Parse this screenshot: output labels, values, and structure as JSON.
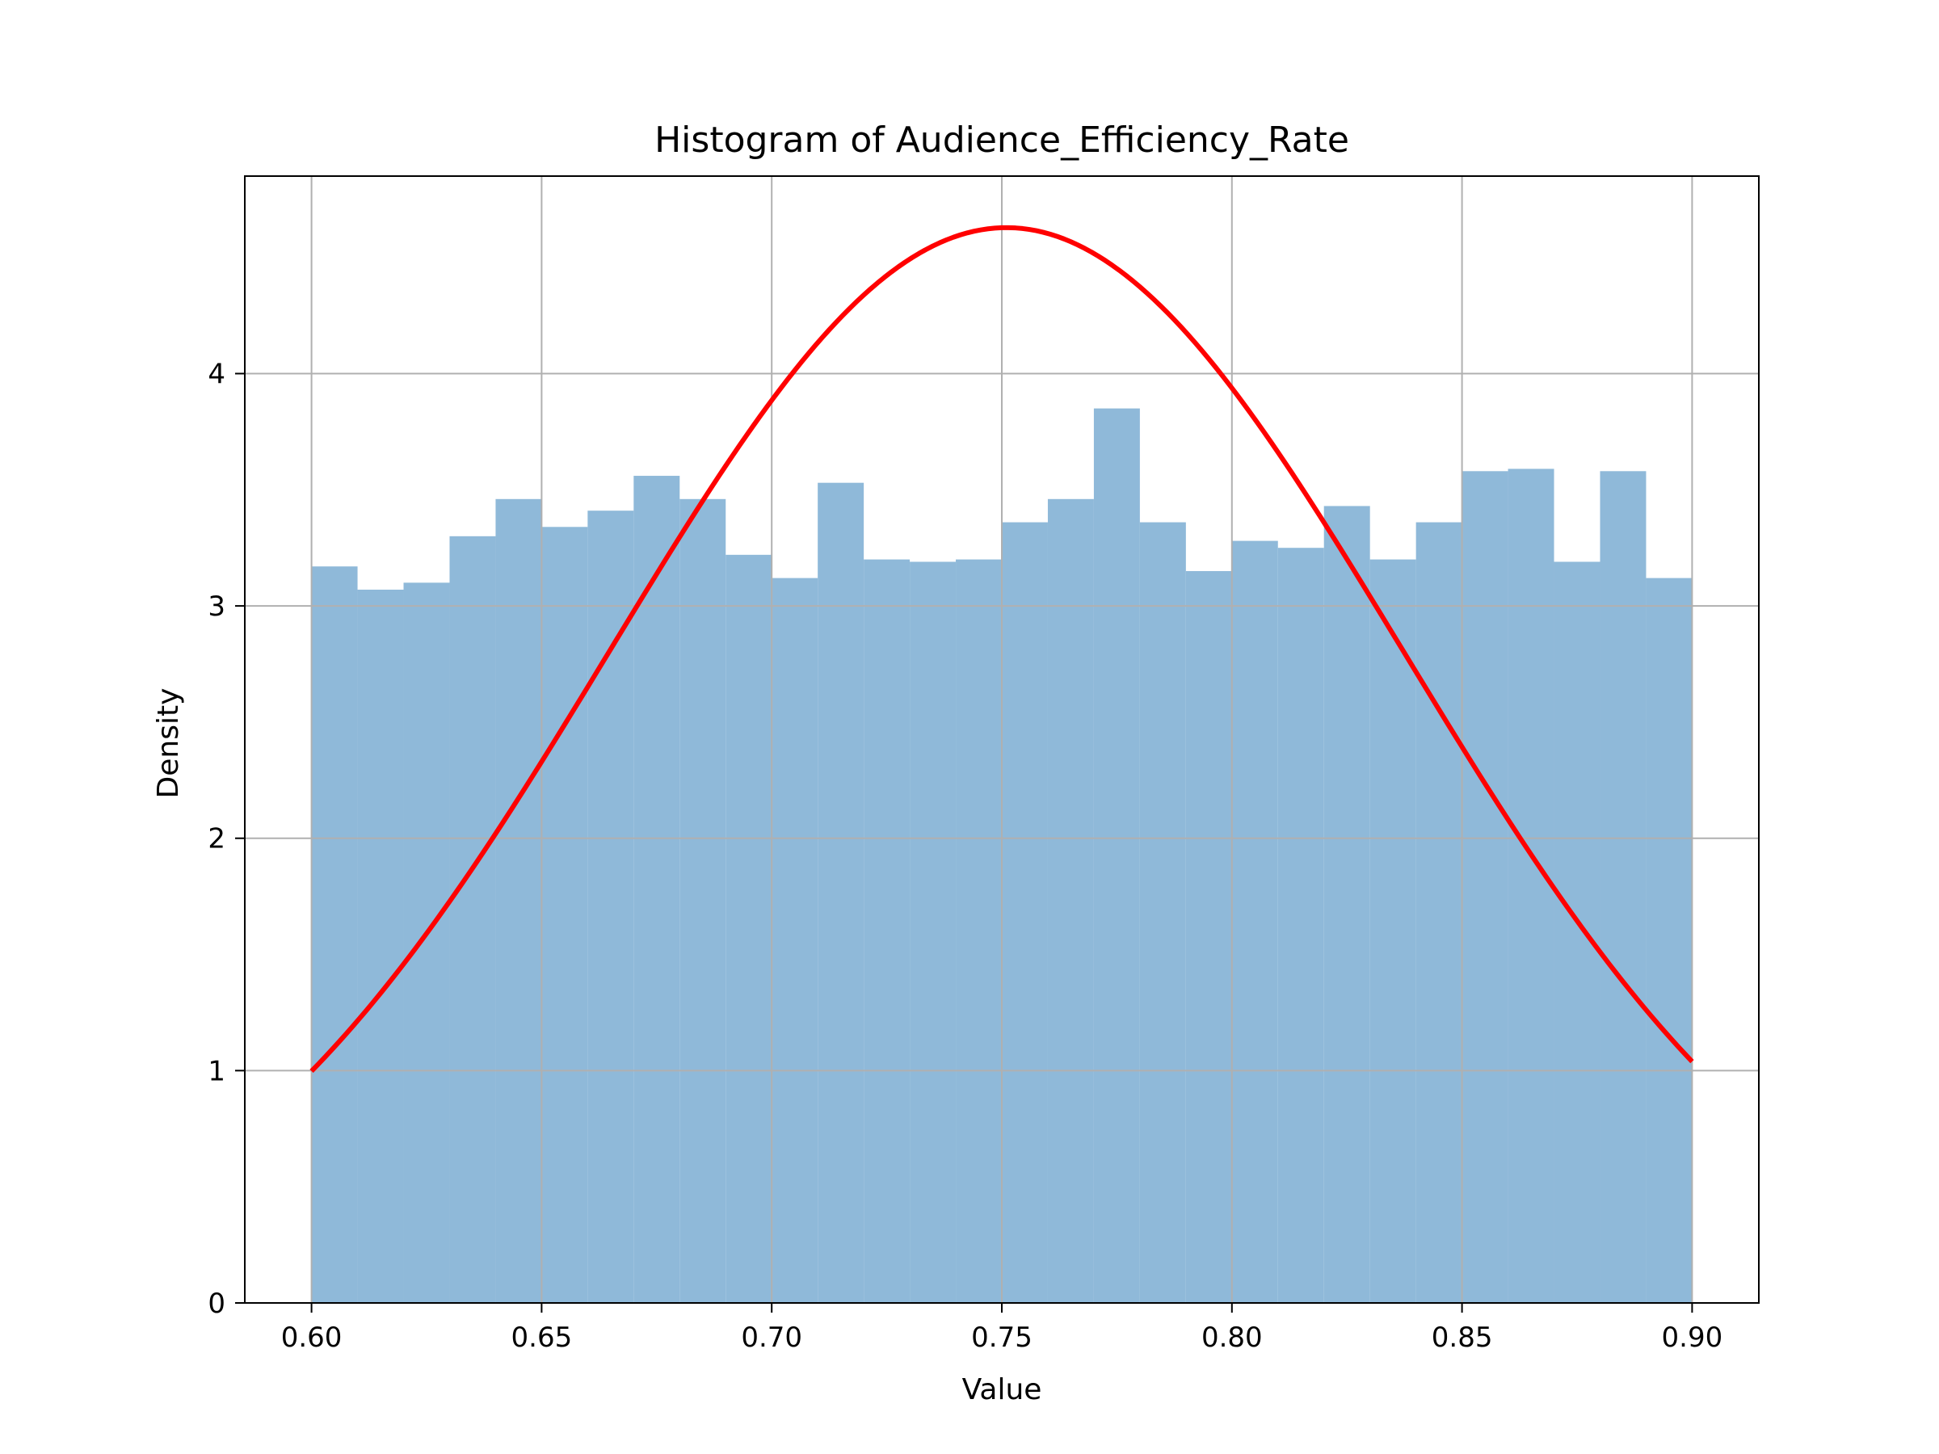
{
  "chart_data": {
    "type": "bar",
    "title": "Histogram of Audience_Efficiency_Rate",
    "xlabel": "Value",
    "ylabel": "Density",
    "xlim": [
      0.5855,
      0.9145
    ],
    "ylim": [
      0,
      4.85
    ],
    "xticks": [
      "0.60",
      "0.65",
      "0.70",
      "0.75",
      "0.80",
      "0.85",
      "0.90"
    ],
    "yticks": [
      "0",
      "1",
      "2",
      "3",
      "4"
    ],
    "grid": true,
    "legend": "none",
    "bar_color": "#8fb9d9",
    "curve_color": "#ff0000",
    "bins": {
      "start": 0.6,
      "width": 0.01,
      "values": [
        3.17,
        3.07,
        3.1,
        3.3,
        3.46,
        3.34,
        3.41,
        3.56,
        3.46,
        3.22,
        3.12,
        3.53,
        3.2,
        3.19,
        3.2,
        3.36,
        3.46,
        3.85,
        3.36,
        3.15,
        3.28,
        3.25,
        3.43,
        3.2,
        3.36,
        3.58,
        3.59,
        3.19,
        3.58,
        3.12
      ]
    },
    "curve": {
      "type": "normal-pdf",
      "mean": 0.751,
      "std": 0.0862,
      "x_range": [
        0.6,
        0.9
      ]
    }
  }
}
